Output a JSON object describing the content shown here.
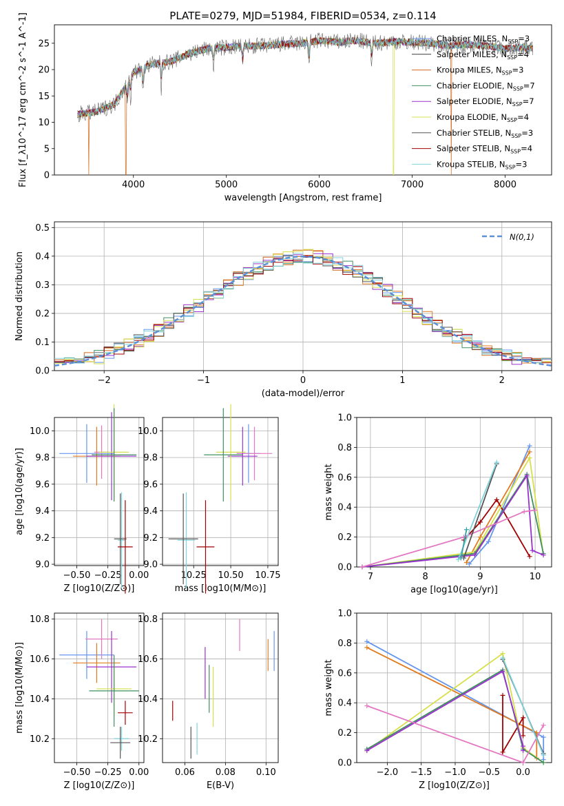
{
  "page": {
    "title": "PLATE=0279, MJD=51984, FIBERID=0534, z=0.114"
  },
  "colors": {
    "palette": [
      "#6495ed",
      "#e07b20",
      "#d2691e",
      "#3f8f5f",
      "#9932cc",
      "#d7e04a",
      "#555555",
      "#a00000",
      "#7fd3dc",
      "#e377c2"
    ]
  },
  "chart_data": [
    {
      "id": "spectrum",
      "type": "line",
      "title": "PLATE=0279, MJD=51984, FIBERID=0534, z=0.114",
      "xlabel": "wavelength [Angstrom, rest frame]",
      "ylabel": "Flux [f_λ10^-17 erg cm^-2 s^-1 A^-1]",
      "xlim": [
        3150,
        8500
      ],
      "ylim": [
        0,
        28.5
      ],
      "xticks": [
        "4000",
        "5000",
        "6000",
        "7000",
        "8000"
      ],
      "yticks": [
        "0",
        "5",
        "10",
        "15",
        "20",
        "25"
      ],
      "legend_position": "top-right",
      "series": [
        {
          "name": "Chabrier MILES, N_SSP=3",
          "color": "#6495ed"
        },
        {
          "name": "Salpeter MILES, N_SSP=4",
          "color": "#3a3a3a"
        },
        {
          "name": "Kroupa MILES, N_SSP=3",
          "color": "#d2691e"
        },
        {
          "name": "Chabrier ELODIE, N_SSP=7",
          "color": "#3f8f5f"
        },
        {
          "name": "Salpeter ELODIE, N_SSP=7",
          "color": "#9932cc"
        },
        {
          "name": "Kroupa ELODIE, N_SSP=4",
          "color": "#d7e04a"
        },
        {
          "name": "Chabrier STELIB, N_SSP=3",
          "color": "#555555"
        },
        {
          "name": "Salpeter STELIB, N_SSP=4",
          "color": "#a00000"
        },
        {
          "name": "Kroupa STELIB, N_SSP=3",
          "color": "#7fd3dc"
        }
      ],
      "continuum": {
        "x": [
          3400,
          3600,
          3800,
          4000,
          4200,
          4400,
          4600,
          4800,
          5000,
          5200,
          5400,
          5600,
          5800,
          6000,
          6200,
          6400,
          6600,
          6800,
          7000,
          7200,
          7400,
          7600,
          7800,
          8000,
          8200,
          8300
        ],
        "y": [
          11.5,
          12.0,
          13.5,
          19.5,
          21.0,
          21.5,
          23.0,
          24.0,
          24.2,
          24.5,
          24.5,
          24.8,
          25.0,
          25.5,
          25.2,
          25.5,
          25.0,
          25.3,
          25.2,
          25.0,
          24.5,
          24.8,
          24.5,
          24.0,
          24.2,
          24.0
        ]
      }
    },
    {
      "id": "residual-hist",
      "type": "histogram",
      "xlabel": "(data-model)/error",
      "ylabel": "Normed distribution",
      "xlim": [
        -2.5,
        2.5
      ],
      "ylim": [
        0,
        0.52
      ],
      "xticks": [
        "−2",
        "−1",
        "0",
        "1",
        "2"
      ],
      "yticks": [
        "0.0",
        "0.1",
        "0.2",
        "0.3",
        "0.4",
        "0.5"
      ],
      "legend": [
        {
          "name": "N(0,1)",
          "color": "#5b8fd6",
          "style": "dashed"
        }
      ],
      "legend_position": "top-right",
      "grid": true,
      "bin_width": 0.1
    },
    {
      "id": "age-vs-Z",
      "type": "errorbar",
      "xlabel": "Z [log10(Z/Z⊙)]",
      "ylabel": "age  [log10(age/yr)]",
      "xlim": [
        -0.68,
        0.04
      ],
      "ylim": [
        8.99,
        10.1
      ],
      "xticks": [
        "−0.50",
        "−0.25",
        "0.00"
      ],
      "yticks": [
        "9.0",
        "9.2",
        "9.4",
        "9.6",
        "9.8",
        "10.0"
      ],
      "grid": true,
      "points": [
        {
          "x": -0.42,
          "y": 9.83,
          "xerr": 0.22,
          "yerr": 0.22,
          "color": "#6495ed"
        },
        {
          "x": -0.34,
          "y": 9.81,
          "xerr": 0.19,
          "yerr": 0.22,
          "color": "#e07b20"
        },
        {
          "x": -0.3,
          "y": 9.84,
          "xerr": 0.06,
          "yerr": 0.2,
          "color": "#e377c2"
        },
        {
          "x": -0.22,
          "y": 9.81,
          "xerr": 0.2,
          "yerr": 0.33,
          "color": "#9932cc"
        },
        {
          "x": -0.2,
          "y": 9.84,
          "xerr": 0.12,
          "yerr": 0.36,
          "color": "#d7e04a"
        },
        {
          "x": -0.2,
          "y": 9.82,
          "xerr": 0.18,
          "yerr": 0.35,
          "color": "#3f8f5f"
        },
        {
          "x": -0.14,
          "y": 9.18,
          "xerr": 0.03,
          "yerr": 0.36,
          "color": "#7fd3dc"
        },
        {
          "x": -0.15,
          "y": 9.19,
          "xerr": 0.05,
          "yerr": 0.34,
          "color": "#555555"
        },
        {
          "x": -0.11,
          "y": 9.13,
          "xerr": 0.06,
          "yerr": 0.35,
          "color": "#a00000"
        }
      ]
    },
    {
      "id": "age-vs-mass",
      "type": "errorbar",
      "xlabel": "mass [log10(M/M⊙)]",
      "ylabel": "",
      "xlim": [
        10.04,
        10.82
      ],
      "ylim": [
        8.99,
        10.1
      ],
      "xticks": [
        "10.25",
        "10.50",
        "10.75"
      ],
      "yticks": [
        "9.0",
        "9.2",
        "9.4",
        "9.6",
        "9.8",
        "10.0"
      ],
      "grid": true,
      "points": [
        {
          "x": 10.62,
          "y": 9.83,
          "xerr": 0.08,
          "yerr": 0.22,
          "color": "#6495ed"
        },
        {
          "x": 10.66,
          "y": 9.83,
          "xerr": 0.12,
          "yerr": 0.2,
          "color": "#e377c2"
        },
        {
          "x": 10.58,
          "y": 9.81,
          "xerr": 0.1,
          "yerr": 0.22,
          "color": "#9932cc"
        },
        {
          "x": 10.5,
          "y": 9.84,
          "xerr": 0.1,
          "yerr": 0.36,
          "color": "#d7e04a"
        },
        {
          "x": 10.45,
          "y": 9.82,
          "xerr": 0.13,
          "yerr": 0.35,
          "color": "#3f8f5f"
        },
        {
          "x": 10.2,
          "y": 9.18,
          "xerr": 0.06,
          "yerr": 0.36,
          "color": "#7fd3dc"
        },
        {
          "x": 10.18,
          "y": 9.19,
          "xerr": 0.1,
          "yerr": 0.34,
          "color": "#555555"
        },
        {
          "x": 10.33,
          "y": 9.13,
          "xerr": 0.06,
          "yerr": 0.35,
          "color": "#a00000"
        }
      ]
    },
    {
      "id": "massweight-vs-age",
      "type": "line",
      "xlabel": "age  [log10(age/yr)]",
      "ylabel": "mass weight",
      "xlim": [
        6.75,
        10.3
      ],
      "ylim": [
        0,
        1.0
      ],
      "xticks": [
        "7",
        "8",
        "9",
        "10"
      ],
      "yticks": [
        "0.0",
        "0.2",
        "0.4",
        "0.6",
        "0.8",
        "1.0"
      ],
      "grid": true,
      "series": [
        {
          "color": "#6495ed",
          "x": [
            8.8,
            9.15,
            9.9
          ],
          "y": [
            0.02,
            0.17,
            0.81
          ]
        },
        {
          "color": "#e07b20",
          "x": [
            8.75,
            9.0,
            9.9
          ],
          "y": [
            0.03,
            0.2,
            0.77
          ]
        },
        {
          "color": "#a00000",
          "x": [
            8.7,
            9.0,
            9.3,
            9.9
          ],
          "y": [
            0.18,
            0.3,
            0.45,
            0.07
          ]
        },
        {
          "color": "#d7e04a",
          "x": [
            6.85,
            8.9,
            9.9,
            10.15
          ],
          "y": [
            0.0,
            0.1,
            0.73,
            0.08
          ]
        },
        {
          "color": "#3f8f5f",
          "x": [
            6.85,
            8.9,
            9.85,
            10.15
          ],
          "y": [
            0.0,
            0.09,
            0.62,
            0.09
          ]
        },
        {
          "color": "#9932cc",
          "x": [
            6.85,
            8.9,
            9.85,
            9.95,
            10.15
          ],
          "y": [
            0.0,
            0.08,
            0.61,
            0.11,
            0.08
          ]
        },
        {
          "color": "#e377c2",
          "x": [
            6.85,
            8.7,
            9.8,
            10.0
          ],
          "y": [
            0.0,
            0.2,
            0.37,
            0.38
          ]
        },
        {
          "color": "#555555",
          "x": [
            8.7,
            9.3
          ],
          "y": [
            0.06,
            0.69
          ]
        },
        {
          "color": "#7fd3dc",
          "x": [
            8.6,
            9.3
          ],
          "y": [
            0.05,
            0.7
          ]
        },
        {
          "color": "#3aa0a0",
          "x": [
            8.65,
            8.75
          ],
          "y": [
            0.06,
            0.25
          ]
        }
      ]
    },
    {
      "id": "mass-vs-Z",
      "type": "errorbar",
      "xlabel": "Z [log10(Z/Z⊙)]",
      "ylabel": "mass [log10(M/M⊙)]",
      "xlim": [
        -0.68,
        0.04
      ],
      "ylim": [
        10.08,
        10.83
      ],
      "xticks": [
        "−0.50",
        "−0.25",
        "0.00"
      ],
      "yticks": [
        "10.2",
        "10.4",
        "10.6",
        "10.8"
      ],
      "grid": true,
      "points": [
        {
          "x": -0.42,
          "y": 10.62,
          "xerr": 0.22,
          "yerr": 0.12,
          "color": "#6495ed"
        },
        {
          "x": -0.34,
          "y": 10.58,
          "xerr": 0.19,
          "yerr": 0.1,
          "color": "#e07b20"
        },
        {
          "x": -0.3,
          "y": 10.7,
          "xerr": 0.13,
          "yerr": 0.1,
          "color": "#e377c2"
        },
        {
          "x": -0.22,
          "y": 10.56,
          "xerr": 0.2,
          "yerr": 0.18,
          "color": "#9932cc"
        },
        {
          "x": -0.2,
          "y": 10.45,
          "xerr": 0.14,
          "yerr": 0.14,
          "color": "#d7e04a"
        },
        {
          "x": -0.2,
          "y": 10.44,
          "xerr": 0.2,
          "yerr": 0.18,
          "color": "#3f8f5f"
        },
        {
          "x": -0.14,
          "y": 10.2,
          "xerr": 0.06,
          "yerr": 0.06,
          "color": "#7fd3dc"
        },
        {
          "x": -0.15,
          "y": 10.18,
          "xerr": 0.08,
          "yerr": 0.08,
          "color": "#555555"
        },
        {
          "x": -0.11,
          "y": 10.33,
          "xerr": 0.06,
          "yerr": 0.06,
          "color": "#a00000"
        }
      ]
    },
    {
      "id": "mass-vs-ebv",
      "type": "errorbar",
      "xlabel": "E(B-V)",
      "ylabel": "",
      "xlim": [
        0.049,
        0.106
      ],
      "ylim": [
        10.08,
        10.83
      ],
      "xticks": [
        "0.06",
        "0.08",
        "0.10"
      ],
      "yticks": [
        "10.2",
        "10.4",
        "10.6",
        "10.8"
      ],
      "grid": true,
      "points": [
        {
          "x": 0.054,
          "y": 10.34,
          "yerr": 0.05,
          "color": "#a00000"
        },
        {
          "x": 0.063,
          "y": 10.18,
          "yerr": 0.08,
          "color": "#555555"
        },
        {
          "x": 0.066,
          "y": 10.2,
          "yerr": 0.08,
          "color": "#7fd3dc"
        },
        {
          "x": 0.07,
          "y": 10.53,
          "yerr": 0.13,
          "color": "#9932cc"
        },
        {
          "x": 0.072,
          "y": 10.45,
          "yerr": 0.12,
          "color": "#3f8f5f"
        },
        {
          "x": 0.074,
          "y": 10.41,
          "yerr": 0.15,
          "color": "#d7e04a"
        },
        {
          "x": 0.087,
          "y": 10.72,
          "yerr": 0.08,
          "color": "#e377c2"
        },
        {
          "x": 0.101,
          "y": 10.62,
          "yerr": 0.08,
          "color": "#e07b20"
        },
        {
          "x": 0.104,
          "y": 10.64,
          "yerr": 0.1,
          "color": "#6495ed"
        }
      ]
    },
    {
      "id": "massweight-vs-Z",
      "type": "line",
      "xlabel": "Z [log10(Z/Z⊙)]",
      "ylabel": "mass weight",
      "xlim": [
        -2.45,
        0.42
      ],
      "ylim": [
        0,
        1.0
      ],
      "xticks": [
        "−2.0",
        "−1.5",
        "−1.0",
        "−0.5",
        "0.0"
      ],
      "yticks": [
        "0.0",
        "0.2",
        "0.4",
        "0.6",
        "0.8",
        "1.0"
      ],
      "grid": true,
      "series": [
        {
          "color": "#6495ed",
          "x": [
            -2.3,
            0.3,
            0.3
          ],
          "y": [
            0.81,
            0.17,
            0.02
          ]
        },
        {
          "color": "#e07b20",
          "x": [
            -2.3,
            0.2,
            0.2
          ],
          "y": [
            0.77,
            0.2,
            0.03
          ]
        },
        {
          "color": "#a00000",
          "x": [
            -0.3,
            -0.3,
            0.0,
            0.0
          ],
          "y": [
            0.45,
            0.07,
            0.3,
            0.18
          ]
        },
        {
          "color": "#d7e04a",
          "x": [
            -2.3,
            -0.3,
            0.0,
            0.3
          ],
          "y": [
            0.08,
            0.73,
            0.1,
            0.0
          ]
        },
        {
          "color": "#3f8f5f",
          "x": [
            -2.3,
            -0.3,
            0.0,
            0.3
          ],
          "y": [
            0.09,
            0.62,
            0.09,
            0.0
          ]
        },
        {
          "color": "#9932cc",
          "x": [
            -2.3,
            -0.3,
            0.0,
            0.0
          ],
          "y": [
            0.08,
            0.61,
            0.11,
            0.08
          ]
        },
        {
          "color": "#e377c2",
          "x": [
            -2.3,
            0.0,
            0.3
          ],
          "y": [
            0.38,
            0.0,
            0.25
          ]
        },
        {
          "color": "#555555",
          "x": [
            -0.3,
            0.3
          ],
          "y": [
            0.69,
            0.06
          ]
        },
        {
          "color": "#7fd3dc",
          "x": [
            -0.3,
            0.3
          ],
          "y": [
            0.7,
            0.05
          ]
        }
      ]
    }
  ]
}
